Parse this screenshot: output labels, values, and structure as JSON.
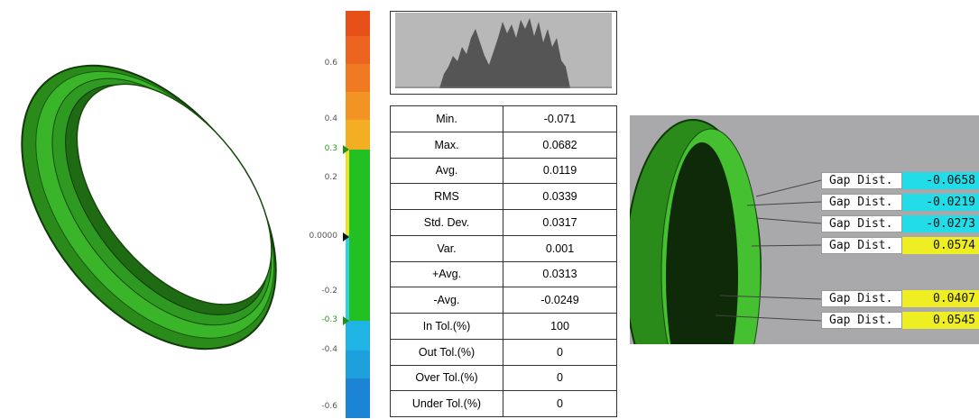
{
  "scale": {
    "labels": [
      "0.6",
      "0.4",
      "0.3",
      "0.2",
      "0.0000",
      "-0.2",
      "-0.3",
      "-0.4",
      "-0.6"
    ]
  },
  "table": {
    "rows": [
      [
        "Min.",
        "-0.071"
      ],
      [
        "Max.",
        "0.0682"
      ],
      [
        "Avg.",
        "0.0119"
      ],
      [
        "RMS",
        "0.0339"
      ],
      [
        "Std. Dev.",
        "0.0317"
      ],
      [
        "Var.",
        "0.001"
      ],
      [
        "+Avg.",
        "0.0313"
      ],
      [
        "-Avg.",
        "-0.0249"
      ],
      [
        "In Tol.(%)",
        "100"
      ],
      [
        "Out Tol.(%)",
        "0"
      ],
      [
        "Over Tol.(%)",
        "0"
      ],
      [
        "Under Tol.(%)",
        "0"
      ]
    ]
  },
  "callouts": [
    [
      "Gap Dist.",
      "-0.0658"
    ],
    [
      "Gap Dist.",
      "-0.0219"
    ],
    [
      "Gap Dist.",
      "-0.0273"
    ],
    [
      "Gap Dist.",
      "0.0574"
    ],
    [
      "Gap Dist.",
      "0.0407"
    ],
    [
      "Gap Dist.",
      "0.0545"
    ]
  ]
}
